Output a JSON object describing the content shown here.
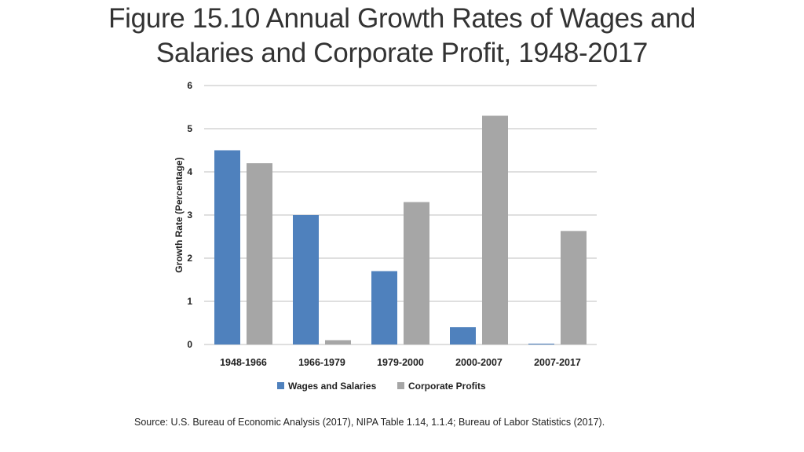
{
  "title": {
    "line1": "Figure 15.10 Annual Growth Rates of Wages and",
    "line2": "Salaries and Corporate Profit, 1948-2017"
  },
  "source": "Source: U.S. Bureau of Economic Analysis (2017), NIPA Table 1.14, 1.1.4; Bureau of Labor Statistics (2017).",
  "colors": {
    "wages": "#4f81bd",
    "profits": "#a6a6a6"
  },
  "chart_data": {
    "type": "bar",
    "title": "Figure 15.10 Annual Growth Rates of Wages and Salaries and Corporate Profit, 1948-2017",
    "xlabel": "",
    "ylabel": "Growth Rate (Percentage)",
    "ylim": [
      0,
      6
    ],
    "yticks": [
      "0",
      "1",
      "2",
      "3",
      "4",
      "5",
      "6"
    ],
    "grid": true,
    "legend_position": "bottom",
    "categories": [
      "1948-1966",
      "1966-1979",
      "1979-2000",
      "2000-2007",
      "2007-2017"
    ],
    "series": [
      {
        "name": "Wages and Salaries",
        "values": [
          4.5,
          3.0,
          1.7,
          0.4,
          0.02
        ]
      },
      {
        "name": "Corporate Profits",
        "values": [
          4.2,
          0.1,
          3.3,
          5.3,
          2.63
        ]
      }
    ]
  }
}
